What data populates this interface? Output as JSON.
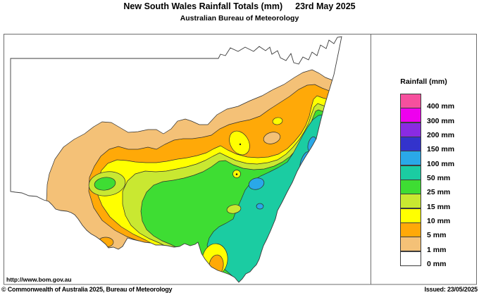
{
  "header": {
    "title": "New South Wales Rainfall Totals (mm)",
    "date": "23rd May 2025",
    "subtitle": "Australian Bureau of Meteorology"
  },
  "legend": {
    "title": "Rainfall (mm)",
    "entries": [
      {
        "label": "400 mm",
        "color": "#f6509e"
      },
      {
        "label": "300 mm",
        "color": "#ee00ee"
      },
      {
        "label": "200 mm",
        "color": "#8a2be2"
      },
      {
        "label": "150 mm",
        "color": "#3333cc"
      },
      {
        "label": "100 mm",
        "color": "#2aa8e8"
      },
      {
        "label": "50 mm",
        "color": "#1bcca2"
      },
      {
        "label": "25 mm",
        "color": "#3edd33"
      },
      {
        "label": "15 mm",
        "color": "#c9e831"
      },
      {
        "label": "10 mm",
        "color": "#ffff00"
      },
      {
        "label": "5 mm",
        "color": "#ffa908"
      },
      {
        "label": "1 mm",
        "color": "#f4c177"
      },
      {
        "label": "0 mm",
        "color": "#ffffff"
      }
    ]
  },
  "footer": {
    "url": "http://www.bom.gov.au",
    "copyright": "© Commonwealth of Australia 2025, Bureau of Meteorology",
    "issued": "Issued: 23/05/2025"
  },
  "colors": {
    "frame": "#6e6e6e",
    "state_border": "#3c3c3c",
    "contour": "#2e2e2e",
    "marker_dot": "#1a1a1a",
    "tan": "#f4c177",
    "orange": "#ffa908",
    "yellow": "#ffff00",
    "yellow_green": "#c9e831",
    "green": "#3edd33",
    "teal": "#1bcca2",
    "light_blue": "#2aa8e8",
    "white": "#ffffff"
  },
  "chart_data": {
    "type": "heatmap",
    "title": "New South Wales Rainfall Totals (mm) 23rd May 2025",
    "units": "mm",
    "legend_position": "right",
    "thresholds_mm": [
      0,
      1,
      5,
      10,
      15,
      25,
      50,
      100,
      150,
      200,
      300,
      400
    ],
    "band_colors": [
      "#ffffff",
      "#f4c177",
      "#ffa908",
      "#ffff00",
      "#c9e831",
      "#3edd33",
      "#1bcca2",
      "#2aa8e8",
      "#3333cc",
      "#8a2be2",
      "#ee00ee",
      "#f6509e"
    ],
    "spatial_pattern": "0 mm over the far west and northwest of NSW; concentric bands of 1, 5, 10, 15 and 25 mm increasing toward the southeast and northeast; 25-50 mm over the southeast inland and southern ranges; 50-100 mm along much of the coast and adjacent ranges; isolated pockets above 100 mm on the central and north coast"
  }
}
